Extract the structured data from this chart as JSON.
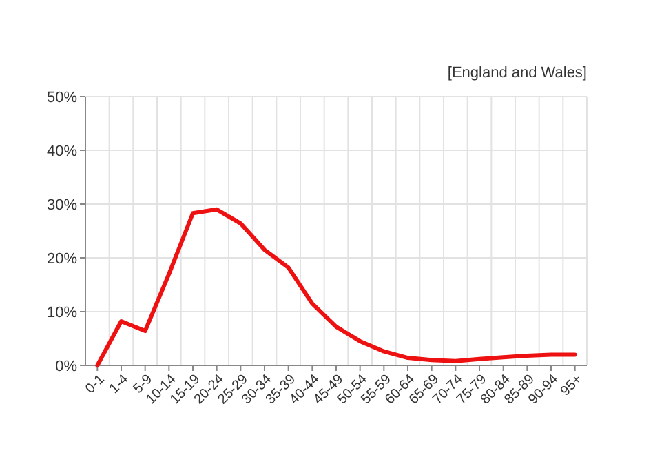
{
  "chart_data": {
    "type": "line",
    "annotations": [
      "[England and Wales]"
    ],
    "categories": [
      "0-1",
      "1-4",
      "5-9",
      "10-14",
      "15-19",
      "20-24",
      "25-29",
      "30-34",
      "35-39",
      "40-44",
      "45-49",
      "50-54",
      "55-59",
      "60-64",
      "65-69",
      "70-74",
      "75-79",
      "80-84",
      "85-89",
      "90-94",
      "95+"
    ],
    "series": [
      {
        "color": "#ee1111",
        "values": [
          0,
          8.2,
          6.4,
          17,
          28.3,
          29,
          26.4,
          21.5,
          18.2,
          11.5,
          7.2,
          4.5,
          2.6,
          1.4,
          1.0,
          0.8,
          1.2,
          1.5,
          1.8,
          2.0,
          2.0
        ]
      }
    ],
    "ylim": [
      0,
      50
    ],
    "yticks": [
      {
        "value": 0,
        "label": "0%"
      },
      {
        "value": 10,
        "label": "10%"
      },
      {
        "value": 20,
        "label": "20%"
      },
      {
        "value": 30,
        "label": "30%"
      },
      {
        "value": 40,
        "label": "40%"
      },
      {
        "value": 50,
        "label": "50%"
      }
    ],
    "grid": true,
    "marker": "none",
    "line_style": "solid"
  }
}
